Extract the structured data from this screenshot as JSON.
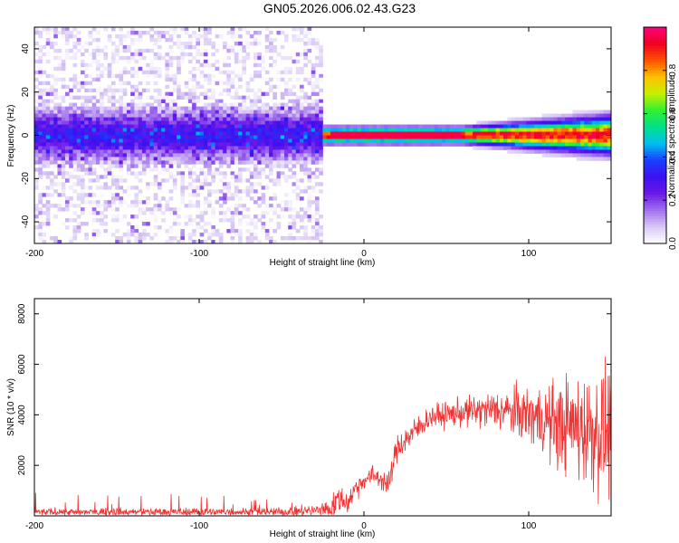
{
  "title": "GN05.2026.006.02.43.G23",
  "colors": {
    "snr_line": "#ef3434",
    "axes": "#000000",
    "colormap": [
      "#ffffff",
      "#d8c8f5",
      "#a070ee",
      "#6a18e8",
      "#3c10f0",
      "#1a40ff",
      "#00c0f0",
      "#00e08a",
      "#30f030",
      "#c8f000",
      "#ffc000",
      "#ff5000",
      "#f00020",
      "#ff0080"
    ]
  },
  "chart_data": [
    {
      "type": "heatmap",
      "xlabel": "Height of straight line (km)",
      "ylabel": "Frequency (Hz)",
      "xlim": [
        -200,
        150
      ],
      "ylim": [
        -50,
        50
      ],
      "xticks": [
        -200,
        -100,
        0,
        100
      ],
      "yticks": [
        -40,
        -20,
        0,
        20,
        40
      ],
      "colorbar": {
        "label": "Normalized spectral amplitude",
        "range": [
          0.0,
          1.0
        ],
        "ticks": [
          0.0,
          0.2,
          0.4,
          0.6,
          0.8
        ],
        "tick_labels": [
          "0.0",
          "0.2",
          "0.4",
          "0.6",
          "0.8"
        ]
      },
      "description_regions": [
        {
          "x_range": [
            -200,
            -24
          ],
          "freq_center": 0,
          "freq_core_halfwidth": 8,
          "amplitude_core": 0.25,
          "background_amplitude": 0.05
        },
        {
          "x_range": [
            -24,
            150
          ],
          "freq_center": 0,
          "freq_core_halfwidth": 2.5,
          "amplitude_core": 0.9,
          "background_amplitude": 0.0
        }
      ]
    },
    {
      "type": "line",
      "xlabel": "Height of straight line (km)",
      "ylabel": "SNR (10 * v/v)",
      "xlim": [
        -200,
        150
      ],
      "ylim": [
        0,
        8600
      ],
      "xticks": [
        -200,
        -100,
        0,
        100
      ],
      "yticks": [
        2000,
        4000,
        6000,
        8000
      ],
      "envelope": {
        "x": [
          -200,
          -150,
          -100,
          -50,
          -30,
          -20,
          -15,
          -10,
          -5,
          0,
          5,
          10,
          15,
          20,
          30,
          40,
          60,
          80,
          100,
          120,
          140,
          150
        ],
        "mean": [
          150,
          150,
          150,
          160,
          200,
          300,
          700,
          500,
          1100,
          1400,
          1600,
          1500,
          1200,
          2700,
          3300,
          3900,
          4100,
          4200,
          4000,
          3600,
          3400,
          3300
        ],
        "spread": [
          120,
          150,
          150,
          150,
          250,
          400,
          500,
          400,
          450,
          300,
          350,
          400,
          400,
          500,
          500,
          400,
          500,
          700,
          1000,
          1600,
          2200,
          2300
        ]
      }
    }
  ]
}
